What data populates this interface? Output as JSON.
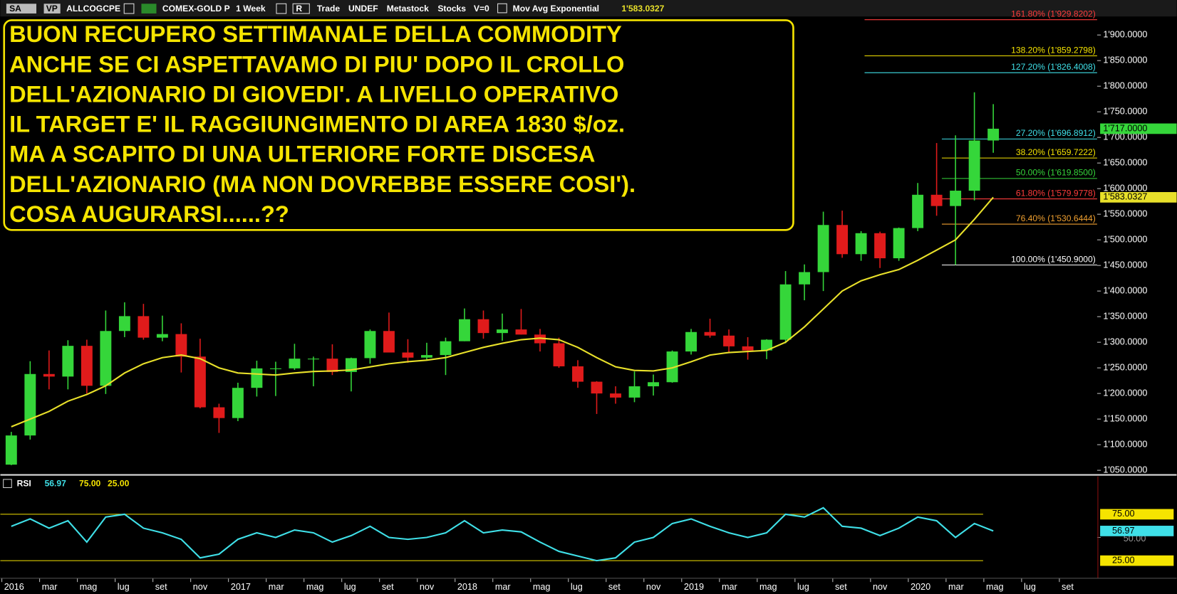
{
  "header": {
    "items": [
      "SA",
      "VP",
      "ALLCOGCPE",
      "COMEX-GOLD P",
      "1 Week",
      "R",
      "Trade",
      "UNDEF",
      "Metastock",
      "Stocks",
      "V=0"
    ]
  },
  "chart_data": [
    {
      "type": "candlestick",
      "annotation_lines": [
        "BUON RECUPERO SETTIMANALE DELLA COMMODITY",
        "ANCHE SE CI ASPETTAVAMO DI PIU' DOPO IL CROLLO",
        "DELL'AZIONARIO DI GIOVEDI'. A LIVELLO OPERATIVO",
        "IL TARGET E' IL RAGGIUNGIMENTO DI AREA 1830 $/oz.",
        "MA A SCAPITO DI UNA ULTERIORE FORTE DISCESA",
        "DELL'AZIONARIO (MA NON DOVREBBE ESSERE COSI').",
        "COSA AUGURARSI......??"
      ],
      "x": [
        "2016-01",
        "2016-02",
        "2016-03",
        "2016-04",
        "2016-05",
        "2016-06",
        "2016-07",
        "2016-08",
        "2016-09",
        "2016-10",
        "2016-11",
        "2016-12",
        "2017-01",
        "2017-02",
        "2017-03",
        "2017-04",
        "2017-05",
        "2017-06",
        "2017-07",
        "2017-08",
        "2017-09",
        "2017-10",
        "2017-11",
        "2017-12",
        "2018-01",
        "2018-02",
        "2018-03",
        "2018-04",
        "2018-05",
        "2018-06",
        "2018-07",
        "2018-08",
        "2018-09",
        "2018-10",
        "2018-11",
        "2018-12",
        "2019-01",
        "2019-02",
        "2019-03",
        "2019-04",
        "2019-05",
        "2019-06",
        "2019-07",
        "2019-08",
        "2019-09",
        "2019-10",
        "2019-11",
        "2019-12",
        "2020-01",
        "2020-02",
        "2020-03",
        "2020-04",
        "2020-05"
      ],
      "open": [
        1061,
        1118,
        1238,
        1233,
        1293,
        1215,
        1322,
        1351,
        1309,
        1316,
        1272,
        1173,
        1152,
        1211,
        1249,
        1249,
        1268,
        1268,
        1242,
        1269,
        1322,
        1280,
        1270,
        1275,
        1302,
        1345,
        1318,
        1325,
        1315,
        1298,
        1253,
        1223,
        1200,
        1192,
        1214,
        1222,
        1282,
        1320,
        1313,
        1292,
        1284,
        1305,
        1413,
        1437,
        1529,
        1472,
        1513,
        1464,
        1523,
        1588,
        1566,
        1596,
        1694
      ],
      "high": [
        1125,
        1263,
        1284,
        1304,
        1305,
        1362,
        1378,
        1375,
        1352,
        1337,
        1307,
        1180,
        1221,
        1264,
        1262,
        1297,
        1272,
        1296,
        1270,
        1325,
        1358,
        1306,
        1299,
        1309,
        1366,
        1362,
        1356,
        1365,
        1326,
        1309,
        1265,
        1224,
        1214,
        1243,
        1237,
        1284,
        1326,
        1346,
        1325,
        1310,
        1306,
        1439,
        1452,
        1555,
        1557,
        1517,
        1516,
        1524,
        1611,
        1689,
        1704,
        1788,
        1765
      ],
      "low": [
        1060,
        1110,
        1208,
        1208,
        1200,
        1199,
        1310,
        1305,
        1302,
        1241,
        1171,
        1123,
        1146,
        1194,
        1195,
        1246,
        1214,
        1236,
        1204,
        1258,
        1281,
        1260,
        1264,
        1236,
        1302,
        1307,
        1303,
        1315,
        1282,
        1250,
        1211,
        1160,
        1180,
        1183,
        1196,
        1221,
        1276,
        1309,
        1280,
        1266,
        1267,
        1298,
        1382,
        1400,
        1465,
        1459,
        1445,
        1459,
        1517,
        1547,
        1451,
        1577,
        1670
      ],
      "close": [
        1118,
        1238,
        1233,
        1293,
        1215,
        1322,
        1351,
        1309,
        1316,
        1272,
        1173,
        1152,
        1211,
        1249,
        1249,
        1268,
        1268,
        1242,
        1269,
        1322,
        1280,
        1270,
        1275,
        1302,
        1345,
        1318,
        1325,
        1315,
        1298,
        1253,
        1223,
        1200,
        1192,
        1214,
        1222,
        1282,
        1320,
        1313,
        1292,
        1284,
        1305,
        1413,
        1437,
        1529,
        1472,
        1513,
        1464,
        1523,
        1588,
        1566,
        1596,
        1694,
        1717
      ],
      "up_color": "#35d63a",
      "down_color": "#e01b1b",
      "overlays": [
        {
          "name": "Mov Avg Exponential",
          "color": "#e8e02a",
          "values": [
            1135,
            1150,
            1165,
            1185,
            1198,
            1215,
            1240,
            1258,
            1270,
            1275,
            1268,
            1250,
            1240,
            1238,
            1236,
            1240,
            1243,
            1244,
            1246,
            1252,
            1258,
            1262,
            1265,
            1270,
            1280,
            1290,
            1298,
            1305,
            1308,
            1305,
            1290,
            1270,
            1252,
            1245,
            1244,
            1250,
            1262,
            1275,
            1280,
            1282,
            1284,
            1300,
            1330,
            1365,
            1400,
            1420,
            1432,
            1442,
            1460,
            1480,
            1500,
            1540,
            1583.0327
          ],
          "last_label": {
            "value": 1583.0327,
            "label": "1'583.0327"
          }
        }
      ],
      "last_price": {
        "value": 1717,
        "label": "1'717.0000"
      },
      "fib_levels": [
        {
          "value": 1929.8202,
          "label": "161.80% (1'929.8202)",
          "color": "#ff3b3b"
        },
        {
          "value": 1859.2798,
          "label": "138.20% (1'859.2798)",
          "color": "#f5e400"
        },
        {
          "value": 1826.4008,
          "label": "127.20% (1'826.4008)",
          "color": "#3fe0e8"
        },
        {
          "value": 1696.8912,
          "label": "27.20% (1'696.8912)",
          "color": "#3fe0e8"
        },
        {
          "value": 1659.7222,
          "label": "38.20% (1'659.7222)",
          "color": "#f5e400"
        },
        {
          "value": 1619.85,
          "label": "50.00% (1'619.8500)",
          "color": "#35d63a"
        },
        {
          "value": 1579.9778,
          "label": "61.80% (1'579.9778)",
          "color": "#ff3b3b"
        },
        {
          "value": 1530.6444,
          "label": "76.40% (1'530.6444)",
          "color": "#f0a030"
        },
        {
          "value": 1450.9,
          "label": "100.00% (1'450.9000)",
          "color": "#ffffff"
        }
      ],
      "xlim": [
        "2016-01",
        "2020-11"
      ],
      "ylim": [
        1041,
        1961
      ],
      "yticks": [
        {
          "value": 1050,
          "label": "1'050.0000"
        },
        {
          "value": 1100,
          "label": "1'100.0000"
        },
        {
          "value": 1150,
          "label": "1'150.0000"
        },
        {
          "value": 1200,
          "label": "1'200.0000"
        },
        {
          "value": 1250,
          "label": "1'250.0000"
        },
        {
          "value": 1300,
          "label": "1'300.0000"
        },
        {
          "value": 1350,
          "label": "1'350.0000"
        },
        {
          "value": 1400,
          "label": "1'400.0000"
        },
        {
          "value": 1450,
          "label": "1'450.0000"
        },
        {
          "value": 1500,
          "label": "1'500.0000"
        },
        {
          "value": 1550,
          "label": "1'550.0000"
        },
        {
          "value": 1600,
          "label": "1'600.0000"
        },
        {
          "value": 1650,
          "label": "1'650.0000"
        },
        {
          "value": 1700,
          "label": "1'700.0000"
        },
        {
          "value": 1750,
          "label": "1'750.0000"
        },
        {
          "value": 1800,
          "label": "1'800.0000"
        },
        {
          "value": 1850,
          "label": "1'850.0000"
        },
        {
          "value": 1900,
          "label": "1'900.0000"
        }
      ]
    },
    {
      "type": "line",
      "title": "RSI",
      "x": [
        "2016-01",
        "2016-02",
        "2016-03",
        "2016-04",
        "2016-05",
        "2016-06",
        "2016-07",
        "2016-08",
        "2016-09",
        "2016-10",
        "2016-11",
        "2016-12",
        "2017-01",
        "2017-02",
        "2017-03",
        "2017-04",
        "2017-05",
        "2017-06",
        "2017-07",
        "2017-08",
        "2017-09",
        "2017-10",
        "2017-11",
        "2017-12",
        "2018-01",
        "2018-02",
        "2018-03",
        "2018-04",
        "2018-05",
        "2018-06",
        "2018-07",
        "2018-08",
        "2018-09",
        "2018-10",
        "2018-11",
        "2018-12",
        "2019-01",
        "2019-02",
        "2019-03",
        "2019-04",
        "2019-05",
        "2019-06",
        "2019-07",
        "2019-08",
        "2019-09",
        "2019-10",
        "2019-11",
        "2019-12",
        "2020-01",
        "2020-02",
        "2020-03",
        "2020-04",
        "2020-05"
      ],
      "series": [
        {
          "name": "RSI",
          "color": "#3fe0e8",
          "values": [
            62,
            70,
            60,
            68,
            45,
            72,
            75,
            60,
            55,
            48,
            28,
            32,
            48,
            55,
            50,
            58,
            55,
            45,
            52,
            62,
            50,
            48,
            50,
            55,
            68,
            55,
            58,
            56,
            45,
            35,
            30,
            25,
            28,
            45,
            50,
            65,
            70,
            62,
            55,
            50,
            55,
            75,
            72,
            82,
            62,
            60,
            52,
            60,
            72,
            68,
            50,
            65,
            56.97
          ]
        }
      ],
      "levels": [
        {
          "value": 75,
          "label": "75.00",
          "color": "#f5e400"
        },
        {
          "value": 25,
          "label": "25.00",
          "color": "#f5e400"
        }
      ],
      "xlim": [
        "2016-01",
        "2020-11"
      ],
      "ylim": [
        6,
        115
      ],
      "yticks": [
        {
          "value": 50,
          "label": "50.00"
        }
      ],
      "xticks": [
        {
          "value": "2016-01",
          "label": "2016"
        },
        {
          "value": "2016-03",
          "label": "mar"
        },
        {
          "value": "2016-05",
          "label": "mag"
        },
        {
          "value": "2016-07",
          "label": "lug"
        },
        {
          "value": "2016-09",
          "label": "set"
        },
        {
          "value": "2016-11",
          "label": "nov"
        },
        {
          "value": "2017-01",
          "label": "2017"
        },
        {
          "value": "2017-03",
          "label": "mar"
        },
        {
          "value": "2017-05",
          "label": "mag"
        },
        {
          "value": "2017-07",
          "label": "lug"
        },
        {
          "value": "2017-09",
          "label": "set"
        },
        {
          "value": "2017-11",
          "label": "nov"
        },
        {
          "value": "2018-01",
          "label": "2018"
        },
        {
          "value": "2018-03",
          "label": "mar"
        },
        {
          "value": "2018-05",
          "label": "mag"
        },
        {
          "value": "2018-07",
          "label": "lug"
        },
        {
          "value": "2018-09",
          "label": "set"
        },
        {
          "value": "2018-11",
          "label": "nov"
        },
        {
          "value": "2019-01",
          "label": "2019"
        },
        {
          "value": "2019-03",
          "label": "mar"
        },
        {
          "value": "2019-05",
          "label": "mag"
        },
        {
          "value": "2019-07",
          "label": "lug"
        },
        {
          "value": "2019-09",
          "label": "set"
        },
        {
          "value": "2019-11",
          "label": "nov"
        },
        {
          "value": "2020-01",
          "label": "2020"
        },
        {
          "value": "2020-03",
          "label": "mar"
        },
        {
          "value": "2020-05",
          "label": "mag"
        },
        {
          "value": "2020-07",
          "label": "lug"
        },
        {
          "value": "2020-09",
          "label": "set"
        }
      ]
    }
  ]
}
